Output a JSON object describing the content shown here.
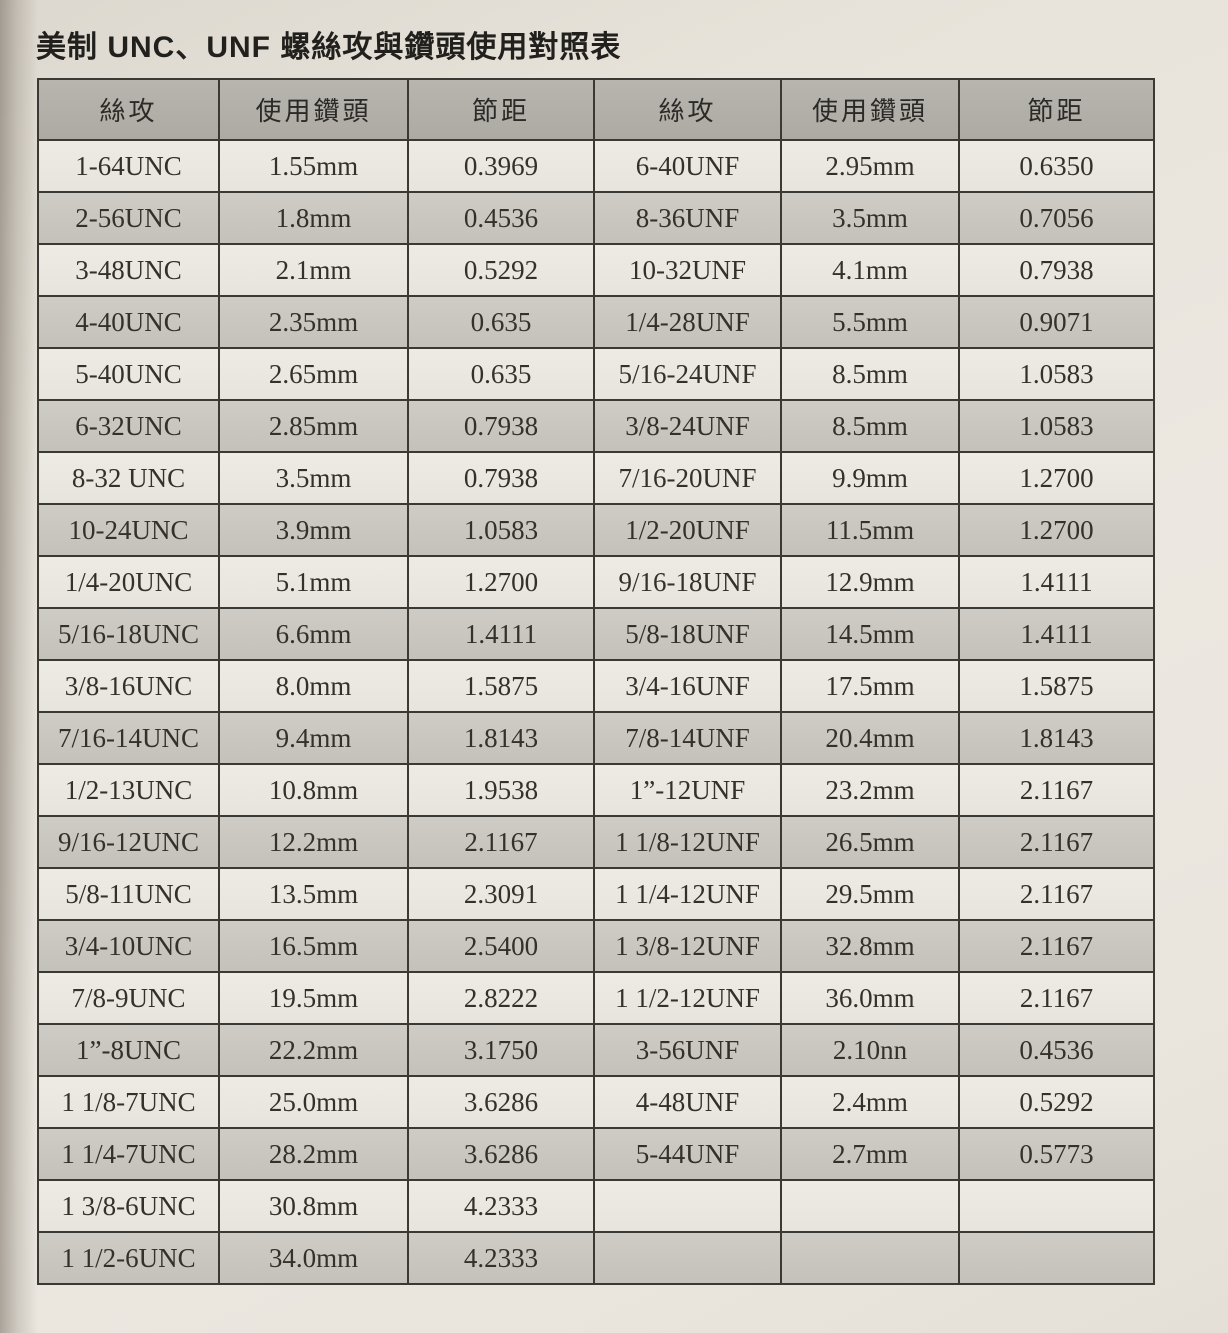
{
  "page": {
    "title": "美制 UNC、UNF 螺絲攻與鑽頭使用對照表"
  },
  "colors": {
    "header_bg": "#b3b0aa",
    "row_plain": "#ebe8e1",
    "row_shaded": "#c9c6c0"
  },
  "table": {
    "headers": [
      "絲攻",
      "使用鑽頭",
      "節距",
      "絲攻",
      "使用鑽頭",
      "節距"
    ],
    "rows": [
      [
        "1-64UNC",
        "1.55mm",
        "0.3969",
        "6-40UNF",
        "2.95mm",
        "0.6350"
      ],
      [
        "2-56UNC",
        "1.8mm",
        "0.4536",
        "8-36UNF",
        "3.5mm",
        "0.7056"
      ],
      [
        "3-48UNC",
        "2.1mm",
        "0.5292",
        "10-32UNF",
        "4.1mm",
        "0.7938"
      ],
      [
        "4-40UNC",
        "2.35mm",
        "0.635",
        "1/4-28UNF",
        "5.5mm",
        "0.9071"
      ],
      [
        "5-40UNC",
        "2.65mm",
        "0.635",
        "5/16-24UNF",
        "8.5mm",
        "1.0583"
      ],
      [
        "6-32UNC",
        "2.85mm",
        "0.7938",
        "3/8-24UNF",
        "8.5mm",
        "1.0583"
      ],
      [
        "8-32 UNC",
        "3.5mm",
        "0.7938",
        "7/16-20UNF",
        "9.9mm",
        "1.2700"
      ],
      [
        "10-24UNC",
        "3.9mm",
        "1.0583",
        "1/2-20UNF",
        "11.5mm",
        "1.2700"
      ],
      [
        "1/4-20UNC",
        "5.1mm",
        "1.2700",
        "9/16-18UNF",
        "12.9mm",
        "1.4111"
      ],
      [
        "5/16-18UNC",
        "6.6mm",
        "1.4111",
        "5/8-18UNF",
        "14.5mm",
        "1.4111"
      ],
      [
        "3/8-16UNC",
        "8.0mm",
        "1.5875",
        "3/4-16UNF",
        "17.5mm",
        "1.5875"
      ],
      [
        "7/16-14UNC",
        "9.4mm",
        "1.8143",
        "7/8-14UNF",
        "20.4mm",
        "1.8143"
      ],
      [
        "1/2-13UNC",
        "10.8mm",
        "1.9538",
        "1”-12UNF",
        "23.2mm",
        "2.1167"
      ],
      [
        "9/16-12UNC",
        "12.2mm",
        "2.1167",
        "1 1/8-12UNF",
        "26.5mm",
        "2.1167"
      ],
      [
        "5/8-11UNC",
        "13.5mm",
        "2.3091",
        "1 1/4-12UNF",
        "29.5mm",
        "2.1167"
      ],
      [
        "3/4-10UNC",
        "16.5mm",
        "2.5400",
        "1 3/8-12UNF",
        "32.8mm",
        "2.1167"
      ],
      [
        "7/8-9UNC",
        "19.5mm",
        "2.8222",
        "1 1/2-12UNF",
        "36.0mm",
        "2.1167"
      ],
      [
        "1”-8UNC",
        "22.2mm",
        "3.1750",
        "3-56UNF",
        "2.10nn",
        "0.4536"
      ],
      [
        "1 1/8-7UNC",
        "25.0mm",
        "3.6286",
        "4-48UNF",
        "2.4mm",
        "0.5292"
      ],
      [
        "1 1/4-7UNC",
        "28.2mm",
        "3.6286",
        "5-44UNF",
        "2.7mm",
        "0.5773"
      ],
      [
        "1 3/8-6UNC",
        "30.8mm",
        "4.2333",
        "",
        "",
        ""
      ],
      [
        "1 1/2-6UNC",
        "34.0mm",
        "4.2333",
        "",
        "",
        ""
      ]
    ]
  }
}
